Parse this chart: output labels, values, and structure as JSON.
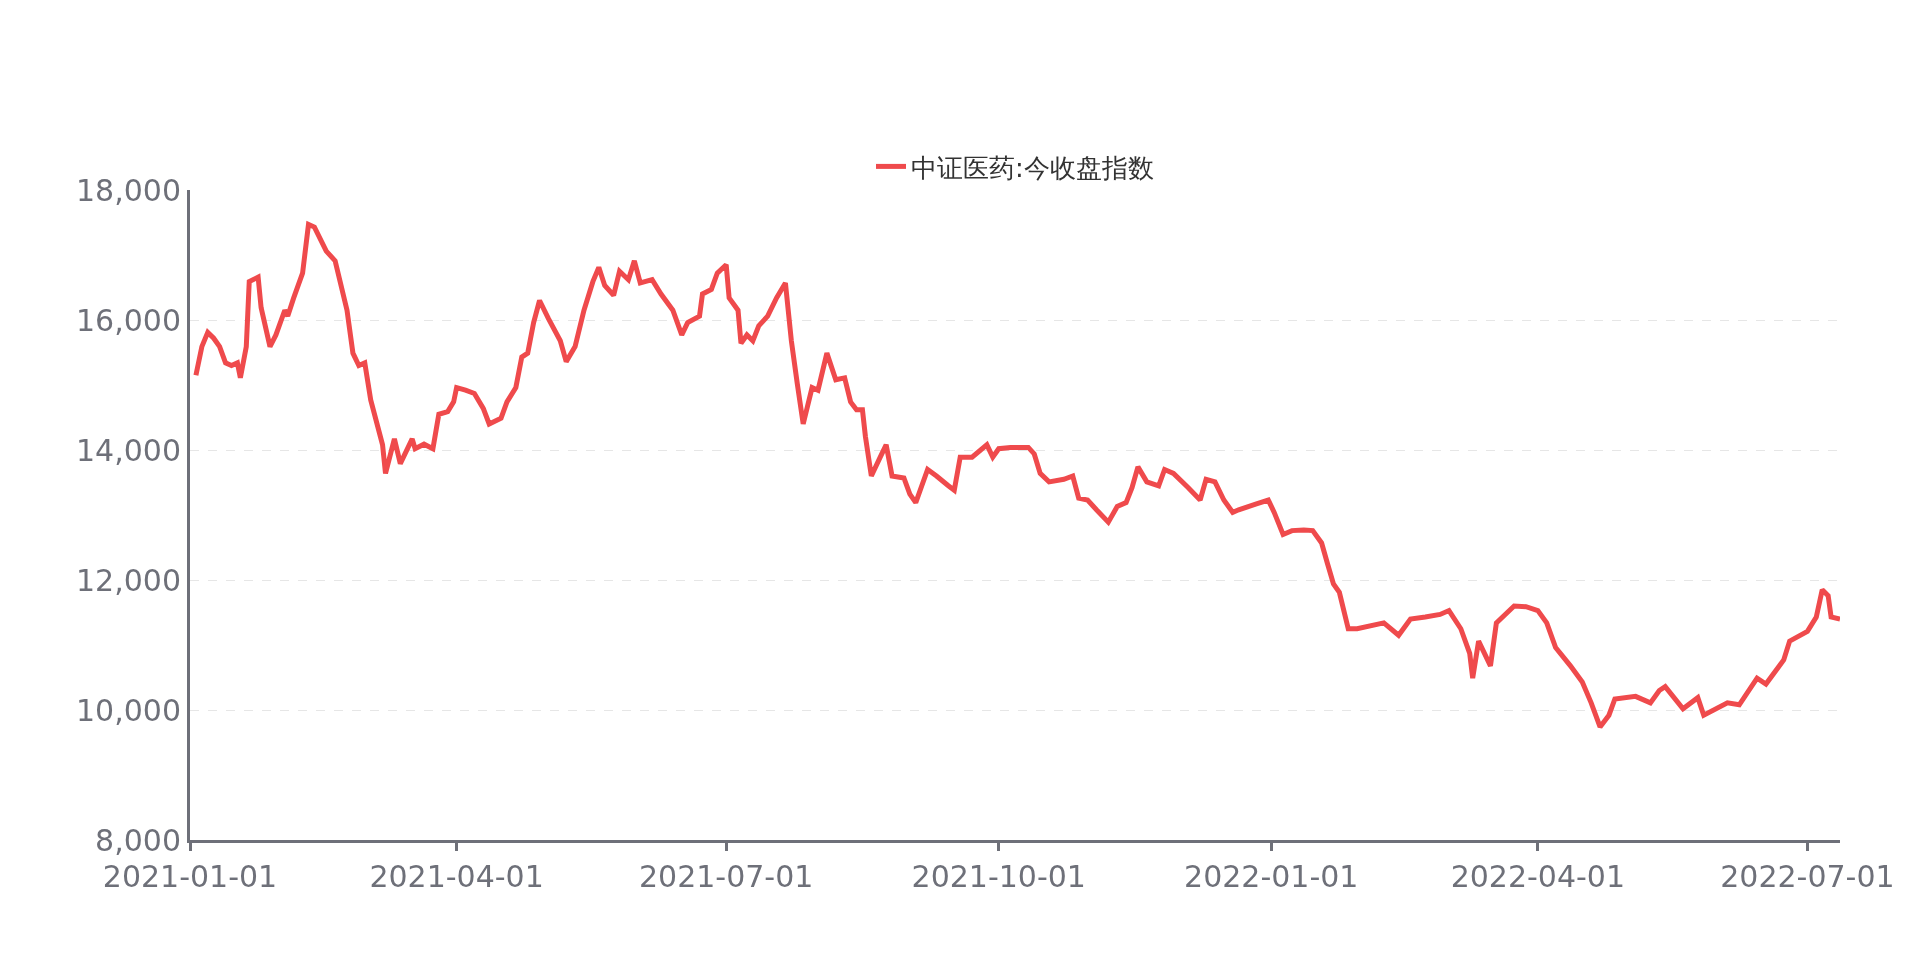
{
  "chart_data": {
    "type": "line",
    "legend": "top",
    "grid": "y",
    "marker": "none",
    "line_style": "solid",
    "xlim": [
      "2021-01-01",
      "2022-07-12"
    ],
    "xticks": [
      {
        "value": "2021-01-01",
        "label": "2021-01-01"
      },
      {
        "value": "2021-04-01",
        "label": "2021-04-01"
      },
      {
        "value": "2021-07-01",
        "label": "2021-07-01"
      },
      {
        "value": "2021-10-01",
        "label": "2021-10-01"
      },
      {
        "value": "2022-01-01",
        "label": "2022-01-01"
      },
      {
        "value": "2022-04-01",
        "label": "2022-04-01"
      },
      {
        "value": "2022-07-01",
        "label": "2022-07-01"
      }
    ],
    "ylim": [
      8000,
      18000
    ],
    "yticks": [
      {
        "value": 8000,
        "label": "8,000"
      },
      {
        "value": 10000,
        "label": "10,000"
      },
      {
        "value": 12000,
        "label": "12,000"
      },
      {
        "value": 14000,
        "label": "14,000"
      },
      {
        "value": 16000,
        "label": "16,000"
      },
      {
        "value": 18000,
        "label": "18,000"
      }
    ],
    "series": [
      {
        "name": "中证医药:今收盘指数",
        "color": "#ef4a4c",
        "x": [
          "2021-01-03",
          "2021-01-05",
          "2021-01-07",
          "2021-01-09",
          "2021-01-11",
          "2021-01-13",
          "2021-01-15",
          "2021-01-17",
          "2021-01-18",
          "2021-01-20",
          "2021-01-21",
          "2021-01-24",
          "2021-01-25",
          "2021-01-28",
          "2021-01-30",
          "2021-02-02",
          "2021-02-03",
          "2021-02-05",
          "2021-02-08",
          "2021-02-10",
          "2021-02-12",
          "2021-02-16",
          "2021-02-19",
          "2021-02-23",
          "2021-02-25",
          "2021-02-27",
          "2021-03-01",
          "2021-03-03",
          "2021-03-07",
          "2021-03-08",
          "2021-03-11",
          "2021-03-13",
          "2021-03-17",
          "2021-03-18",
          "2021-03-21",
          "2021-03-24",
          "2021-03-26",
          "2021-03-29",
          "2021-03-31",
          "2021-04-01",
          "2021-04-04",
          "2021-04-07",
          "2021-04-10",
          "2021-04-12",
          "2021-04-16",
          "2021-04-18",
          "2021-04-21",
          "2021-04-23",
          "2021-04-25",
          "2021-04-27",
          "2021-04-29",
          "2021-05-02",
          "2021-05-06",
          "2021-05-08",
          "2021-05-11",
          "2021-05-14",
          "2021-05-17",
          "2021-05-19",
          "2021-05-21",
          "2021-05-24",
          "2021-05-26",
          "2021-05-29",
          "2021-05-31",
          "2021-06-02",
          "2021-06-06",
          "2021-06-09",
          "2021-06-13",
          "2021-06-16",
          "2021-06-18",
          "2021-06-22",
          "2021-06-23",
          "2021-06-26",
          "2021-06-28",
          "2021-07-01",
          "2021-07-02",
          "2021-07-05",
          "2021-07-06",
          "2021-07-08",
          "2021-07-10",
          "2021-07-12",
          "2021-07-15",
          "2021-07-18",
          "2021-07-21",
          "2021-07-23",
          "2021-07-25",
          "2021-07-27",
          "2021-07-30",
          "2021-08-01",
          "2021-08-04",
          "2021-08-07",
          "2021-08-10",
          "2021-08-12",
          "2021-08-14",
          "2021-08-16",
          "2021-08-17",
          "2021-08-19",
          "2021-08-22",
          "2021-08-24",
          "2021-08-26",
          "2021-08-30",
          "2021-09-01",
          "2021-09-03",
          "2021-09-07",
          "2021-09-10",
          "2021-09-14",
          "2021-09-16",
          "2021-09-18",
          "2021-09-22",
          "2021-09-27",
          "2021-09-29",
          "2021-10-01",
          "2021-10-05",
          "2021-10-11",
          "2021-10-13",
          "2021-10-15",
          "2021-10-18",
          "2021-10-23",
          "2021-10-26",
          "2021-10-28",
          "2021-10-31",
          "2021-11-03",
          "2021-11-07",
          "2021-11-10",
          "2021-11-13",
          "2021-11-15",
          "2021-11-17",
          "2021-11-20",
          "2021-11-24",
          "2021-11-26",
          "2021-11-29",
          "2021-12-04",
          "2021-12-08",
          "2021-12-10",
          "2021-12-13",
          "2021-12-16",
          "2021-12-19",
          "2021-12-21",
          "2021-12-27",
          "2021-12-31",
          "2022-01-02",
          "2022-01-05",
          "2022-01-08",
          "2022-01-12",
          "2022-01-15",
          "2022-01-18",
          "2022-01-20",
          "2022-01-22",
          "2022-01-24",
          "2022-01-27",
          "2022-01-30",
          "2022-02-08",
          "2022-02-13",
          "2022-02-17",
          "2022-02-22",
          "2022-02-27",
          "2022-03-02",
          "2022-03-06",
          "2022-03-09",
          "2022-03-10",
          "2022-03-12",
          "2022-03-16",
          "2022-03-18",
          "2022-03-24",
          "2022-03-28",
          "2022-04-01",
          "2022-04-04",
          "2022-04-07",
          "2022-04-12",
          "2022-04-16",
          "2022-04-19",
          "2022-04-22",
          "2022-04-25",
          "2022-04-27",
          "2022-05-04",
          "2022-05-09",
          "2022-05-12",
          "2022-05-14",
          "2022-05-20",
          "2022-05-25",
          "2022-05-27",
          "2022-06-04",
          "2022-06-08",
          "2022-06-14",
          "2022-06-17",
          "2022-06-23",
          "2022-06-25",
          "2022-07-01",
          "2022-07-04",
          "2022-07-06",
          "2022-07-08",
          "2022-07-09",
          "2022-07-12"
        ],
        "values": [
          15150,
          15590,
          15810,
          15720,
          15590,
          15340,
          15300,
          15340,
          15110,
          15590,
          16590,
          16660,
          16190,
          15590,
          15770,
          16150,
          16060,
          16340,
          16720,
          17470,
          17430,
          17060,
          16910,
          16150,
          15490,
          15300,
          15340,
          14770,
          14080,
          13640,
          14170,
          13790,
          14170,
          14020,
          14090,
          14020,
          14550,
          14590,
          14740,
          14960,
          14920,
          14870,
          14640,
          14400,
          14490,
          14740,
          14960,
          15430,
          15490,
          15960,
          16300,
          16020,
          15680,
          15360,
          15590,
          16150,
          16590,
          16810,
          16530,
          16380,
          16750,
          16620,
          16910,
          16570,
          16620,
          16400,
          16150,
          15770,
          15960,
          16060,
          16400,
          16470,
          16720,
          16850,
          16340,
          16150,
          15640,
          15770,
          15680,
          15910,
          16060,
          16340,
          16570,
          15680,
          15020,
          14400,
          14960,
          14920,
          15490,
          15080,
          15110,
          14740,
          14620,
          14620,
          14210,
          13600,
          13890,
          14080,
          13600,
          13570,
          13320,
          13190,
          13700,
          13600,
          13450,
          13380,
          13890,
          13890,
          14080,
          13890,
          14020,
          14040,
          14040,
          13940,
          13640,
          13510,
          13550,
          13600,
          13260,
          13230,
          13080,
          12890,
          13130,
          13190,
          13420,
          13740,
          13510,
          13450,
          13700,
          13640,
          13420,
          13230,
          13550,
          13510,
          13230,
          13040,
          13080,
          13170,
          13230,
          13040,
          12700,
          12760,
          12770,
          12760,
          12570,
          12250,
          11940,
          11810,
          11250,
          11250,
          11340,
          11150,
          11400,
          11430,
          11470,
          11530,
          11250,
          10870,
          10490,
          11060,
          10680,
          11340,
          11600,
          11590,
          11530,
          11340,
          10960,
          10680,
          10430,
          10110,
          9740,
          9920,
          10170,
          10210,
          10110,
          10300,
          10360,
          10020,
          10190,
          9920,
          10110,
          10080,
          10490,
          10400,
          10770,
          11060,
          11210,
          11430,
          11850,
          11760,
          11430,
          11400
        ]
      }
    ]
  }
}
